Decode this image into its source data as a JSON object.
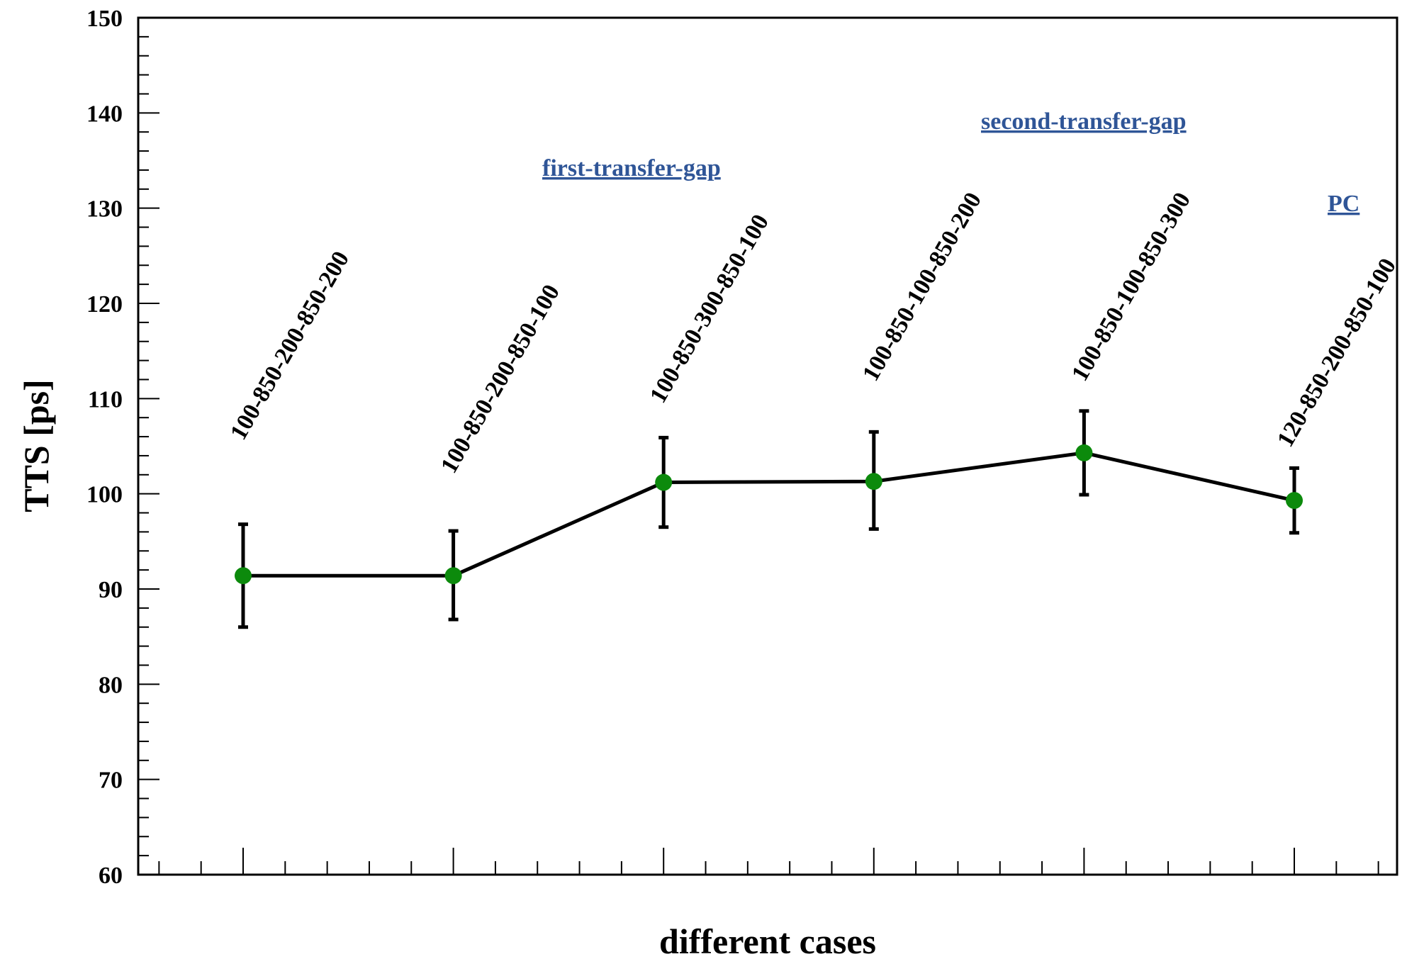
{
  "chart_data": {
    "type": "line",
    "title": "",
    "xlabel": "different cases",
    "ylabel": "TTS [ps]",
    "ylim": [
      60,
      150
    ],
    "yticks": [
      "60",
      "70",
      "80",
      "90",
      "100",
      "110",
      "120",
      "130",
      "140",
      "150"
    ],
    "grid": false,
    "categories": [
      "100-850-200-850-200",
      "100-850-200-850-100",
      "100-850-300-850-100",
      "100-850-100-850-200",
      "100-850-100-850-300",
      "120-850-200-850-100"
    ],
    "series": [
      {
        "values": [
          91.4,
          91.4,
          101.2,
          101.3,
          104.3,
          99.3
        ],
        "error_low": [
          86.0,
          86.8,
          96.5,
          96.3,
          99.9,
          95.9
        ],
        "error_high": [
          96.8,
          96.1,
          105.9,
          106.5,
          108.7,
          102.7
        ],
        "marker_color": "#0c8a0c",
        "line_color": "#000000"
      }
    ],
    "annotations": [
      {
        "text": "first-transfer-gap",
        "color": "#2f5597"
      },
      {
        "text": "second-transfer-gap",
        "color": "#2f5597"
      },
      {
        "text": "PC",
        "color": "#2f5597"
      }
    ]
  }
}
